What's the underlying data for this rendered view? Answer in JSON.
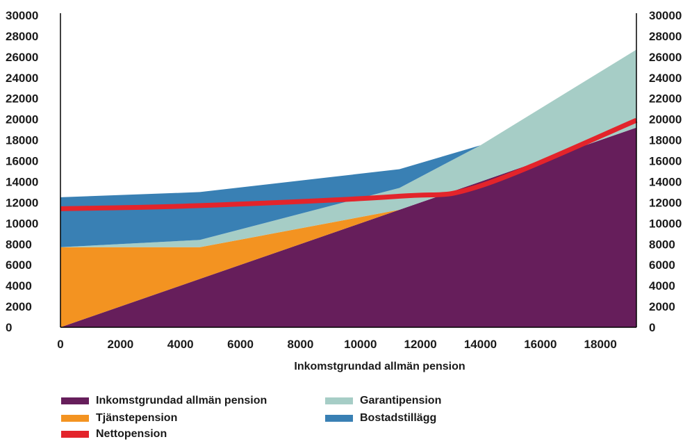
{
  "chart_data": {
    "type": "area",
    "xlabel": "Inkomstgrundad allmän pension",
    "ylabel": "",
    "xlim": [
      0,
      19200
    ],
    "ylim": [
      0,
      30000
    ],
    "x_ticks": [
      "0",
      "2000",
      "4000",
      "6000",
      "8000",
      "10000",
      "12000",
      "14000",
      "16000",
      "18000"
    ],
    "y_ticks": [
      "0",
      "2000",
      "4000",
      "6000",
      "8000",
      "10000",
      "12000",
      "14000",
      "16000",
      "18000",
      "20000",
      "22000",
      "24000",
      "26000",
      "28000",
      "30000"
    ],
    "grid": false,
    "legend_position": "bottom",
    "x": [
      0,
      4650,
      11300,
      14000,
      19200
    ],
    "series": [
      {
        "name": "Inkomstgrundad allmän pension",
        "kind": "stacked-area",
        "color": "#661e5b",
        "values": [
          0,
          4650,
          11300,
          14000,
          19200
        ]
      },
      {
        "name": "Tjänstepension",
        "kind": "stacked-area",
        "color": "#f39321",
        "values": [
          7700,
          3050,
          0,
          0,
          0
        ]
      },
      {
        "name": "Garantipension",
        "kind": "stacked-area",
        "color": "#a6cdc6",
        "values": [
          0,
          700,
          2100,
          3500,
          7500
        ]
      },
      {
        "name": "Bostadstillägg",
        "kind": "stacked-area",
        "color": "#3980b4",
        "values": [
          4800,
          4600,
          1800,
          0,
          0
        ]
      },
      {
        "name": "Nettopension",
        "kind": "line",
        "color": "#e3242b",
        "values": [
          11400,
          11700,
          12600,
          13600,
          19900
        ]
      }
    ]
  },
  "legend": {
    "items": [
      {
        "label": "Inkomstgrundad allmän pension",
        "color": "#661e5b"
      },
      {
        "label": "Garantipension",
        "color": "#a6cdc6"
      },
      {
        "label": "Tjänstepension",
        "color": "#f39321"
      },
      {
        "label": "Bostadstillägg",
        "color": "#3980b4"
      },
      {
        "label": "Nettopension",
        "color": "#e3242b"
      }
    ]
  }
}
